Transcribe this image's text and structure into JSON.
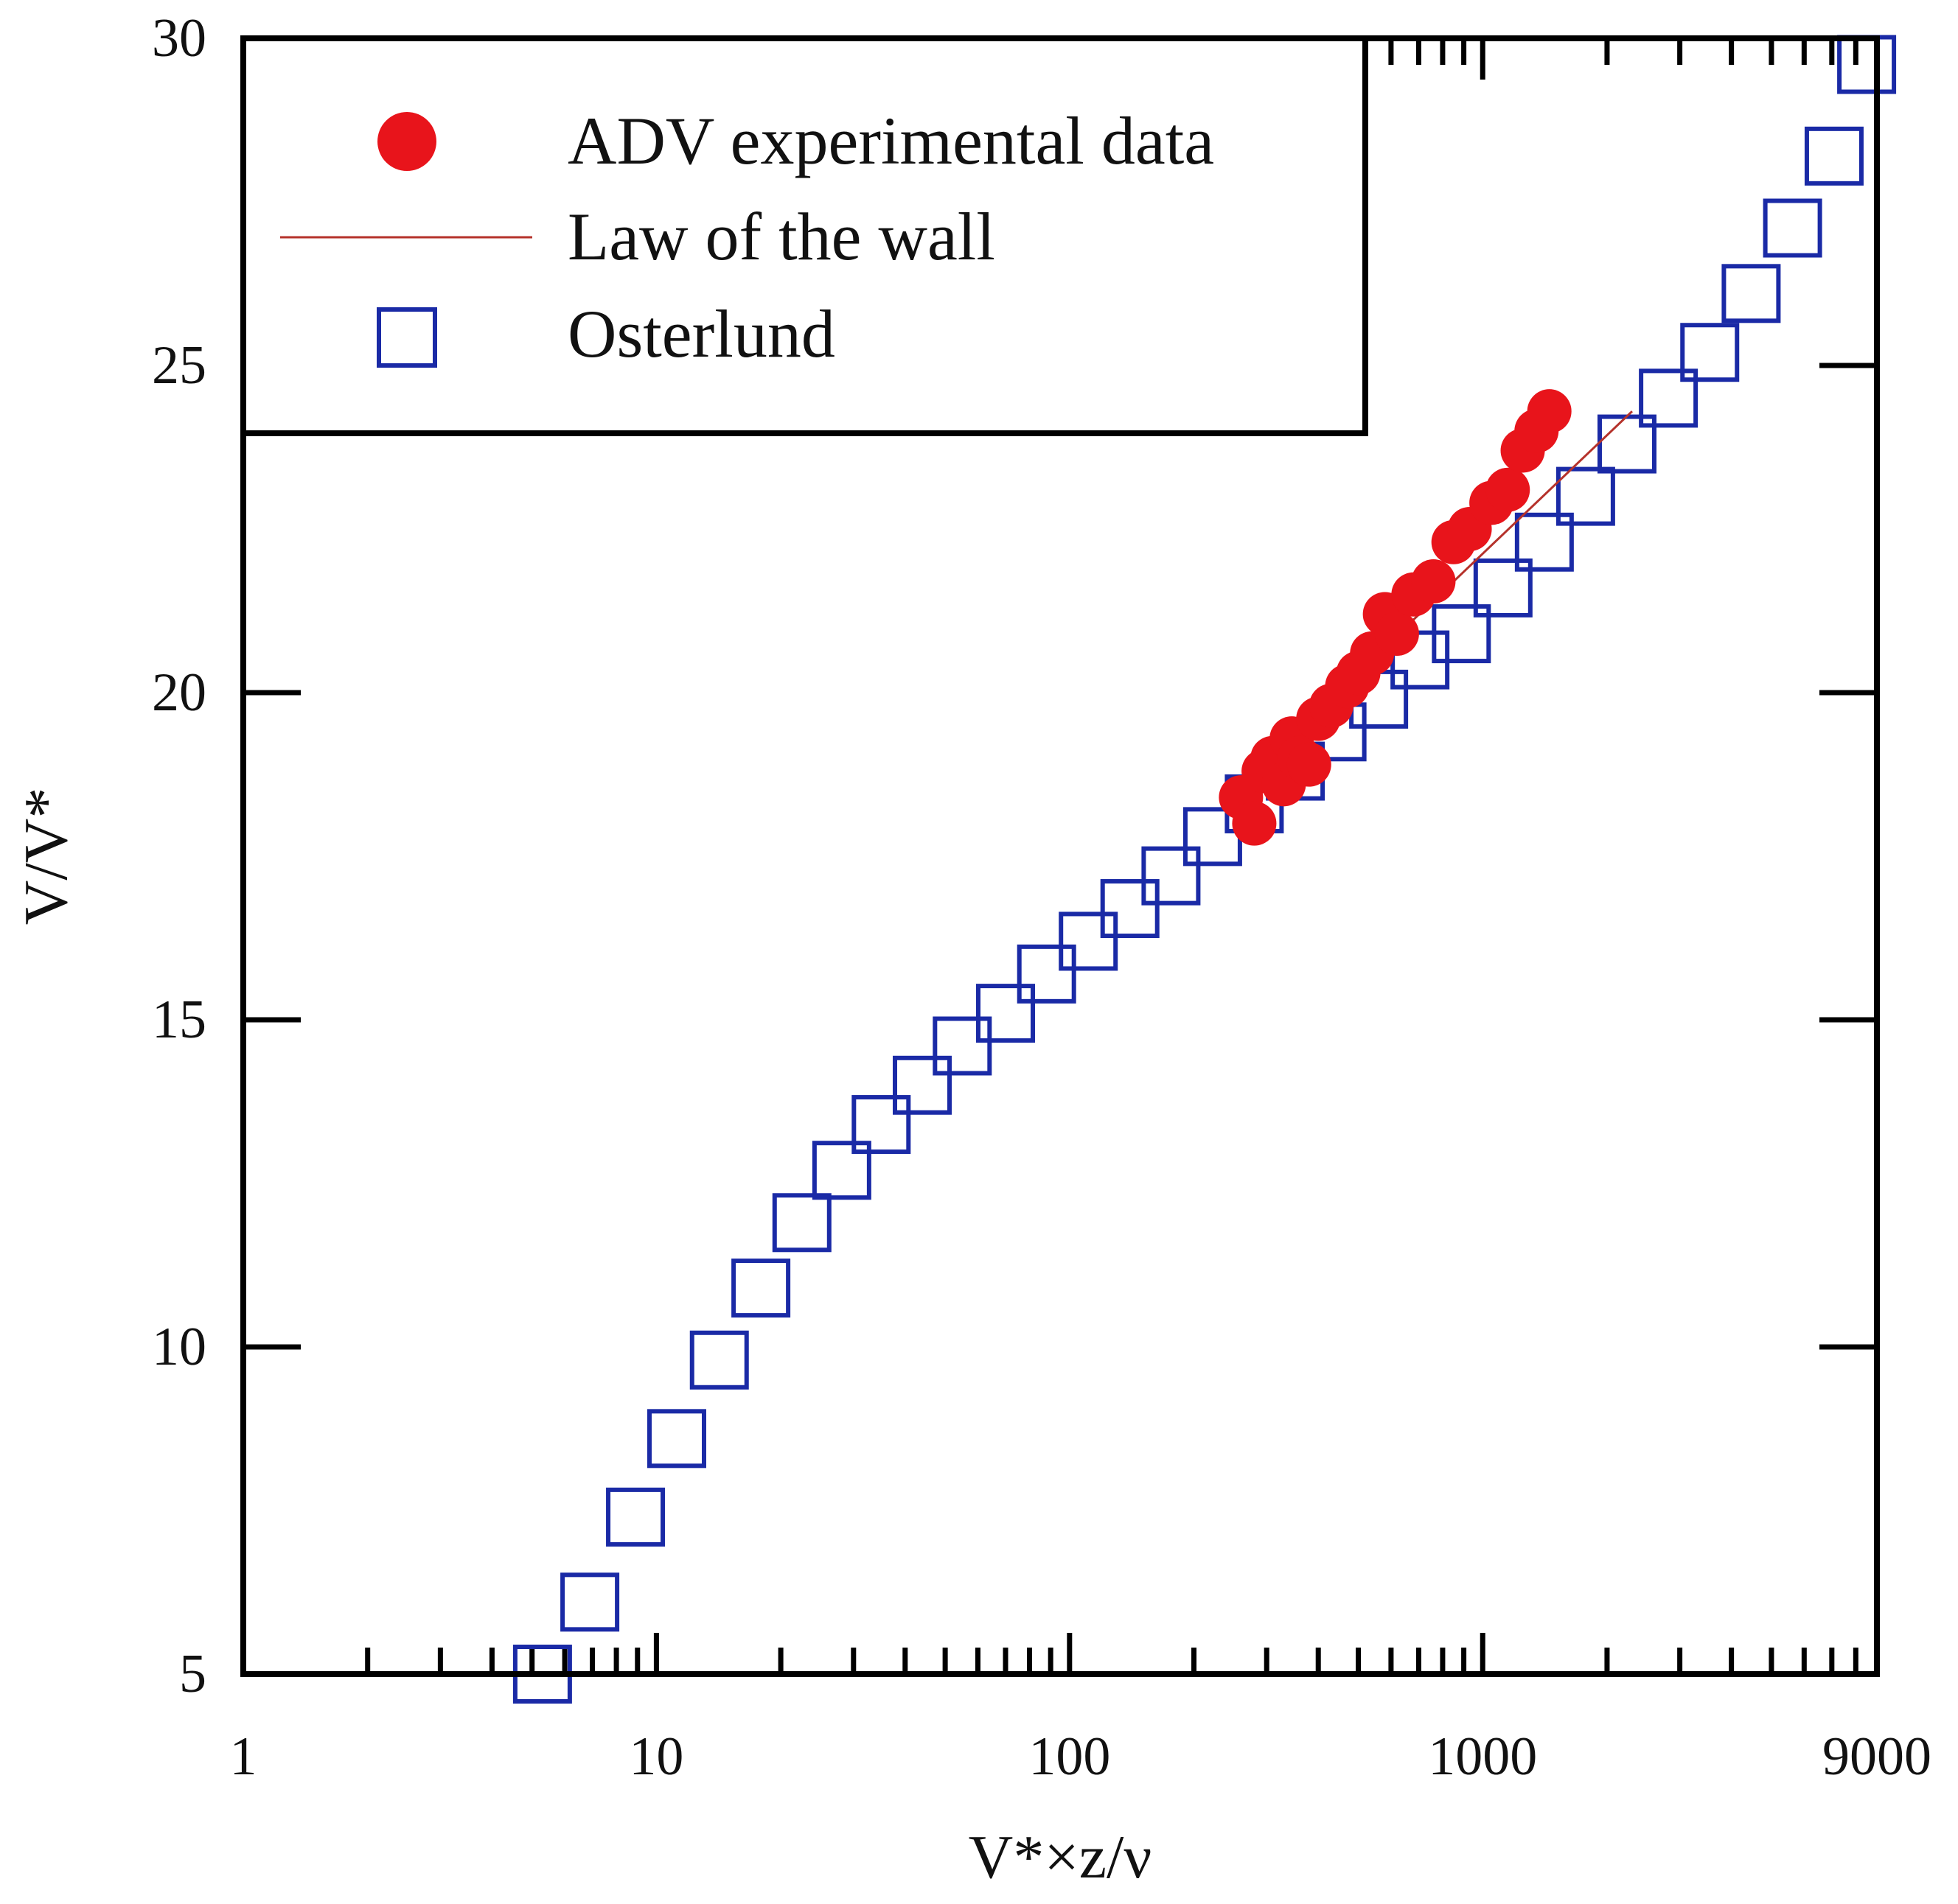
{
  "chart_data": {
    "type": "scatter",
    "xscale": "log",
    "xlim": [
      1,
      9000
    ],
    "ylim": [
      5,
      30
    ],
    "xlabel": "V*×z/ν",
    "ylabel": "V/V*",
    "x_tick_labels": [
      "1",
      "10",
      "100",
      "1000",
      "9000"
    ],
    "x_tick_values": [
      1,
      10,
      100,
      1000,
      9000
    ],
    "y_tick_labels": [
      "5",
      "10",
      "15",
      "20",
      "25",
      "30"
    ],
    "y_tick_values": [
      5,
      10,
      15,
      20,
      25,
      30
    ],
    "legend_position": "top-left",
    "colors": {
      "adv": "#e8141b",
      "law": "#b5322b",
      "osterlund": "#1a2aa6",
      "axis": "#000000"
    },
    "series": [
      {
        "name": "ADV experimental data",
        "marker": "filled-circle",
        "x": [
          260,
          280,
          295,
          310,
          330,
          345,
          360,
          380,
          400,
          430,
          470,
          500,
          540,
          580,
          620,
          680,
          760,
          850,
          930,
          1050,
          1150,
          1250,
          1350,
          1450
        ],
        "y": [
          18.4,
          18.0,
          18.8,
          19.0,
          18.6,
          19.3,
          19.0,
          18.9,
          19.6,
          19.8,
          20.1,
          20.3,
          20.6,
          21.2,
          20.9,
          21.5,
          21.7,
          22.3,
          22.5,
          22.9,
          23.1,
          23.7,
          24.0,
          24.3
        ]
      },
      {
        "name": "Law of the wall",
        "marker": "line",
        "x": [
          250,
          2300
        ],
        "y": [
          18.5,
          24.3
        ]
      },
      {
        "name": "Osterlund",
        "marker": "open-square",
        "x": [
          5.3,
          6.9,
          8.9,
          11.2,
          14.2,
          17.9,
          22.5,
          28.1,
          35,
          44,
          55,
          70,
          88,
          111,
          140,
          176,
          222,
          280,
          352,
          444,
          560,
          705,
          888,
          1120,
          1410,
          1775,
          2235,
          2815,
          3545,
          4465,
          5625,
          7090
        ],
        "y": [
          5.0,
          6.1,
          7.4,
          8.6,
          9.8,
          10.9,
          11.9,
          12.7,
          13.4,
          14.0,
          14.6,
          15.1,
          15.7,
          16.2,
          16.7,
          17.2,
          17.8,
          18.3,
          18.8,
          19.4,
          19.9,
          20.5,
          20.9,
          21.6,
          22.3,
          23.0,
          23.8,
          24.5,
          25.2,
          26.1,
          27.1,
          28.2
        ]
      }
    ],
    "extra_points": [
      {
        "series": "Osterlund",
        "x": 8500,
        "y": 29.6
      }
    ]
  }
}
